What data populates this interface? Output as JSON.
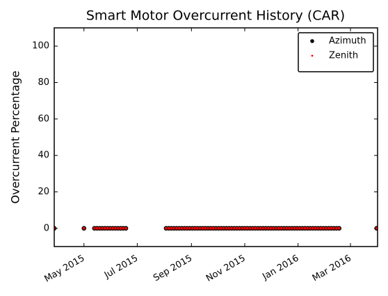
{
  "chart_data": {
    "type": "scatter",
    "title": "Smart Motor Overcurrent History (CAR)",
    "ylabel": "Overcurrent Percentage",
    "x": [
      "2015-03-28",
      "2015-05-01",
      "2015-05-13",
      "2015-05-16",
      "2015-05-19",
      "2015-05-22",
      "2015-05-25",
      "2015-05-28",
      "2015-05-31",
      "2015-06-03",
      "2015-06-06",
      "2015-06-09",
      "2015-06-12",
      "2015-06-15",
      "2015-06-18",
      "2015-08-03",
      "2015-08-06",
      "2015-08-09",
      "2015-08-12",
      "2015-08-15",
      "2015-08-18",
      "2015-08-21",
      "2015-08-24",
      "2015-08-27",
      "2015-08-30",
      "2015-09-02",
      "2015-09-05",
      "2015-09-08",
      "2015-09-11",
      "2015-09-14",
      "2015-09-17",
      "2015-09-20",
      "2015-09-23",
      "2015-09-26",
      "2015-09-29",
      "2015-10-02",
      "2015-10-05",
      "2015-10-08",
      "2015-10-11",
      "2015-10-14",
      "2015-10-17",
      "2015-10-20",
      "2015-10-23",
      "2015-10-26",
      "2015-10-29",
      "2015-11-01",
      "2015-11-04",
      "2015-11-07",
      "2015-11-10",
      "2015-11-13",
      "2015-11-16",
      "2015-11-19",
      "2015-11-22",
      "2015-11-25",
      "2015-11-28",
      "2015-12-01",
      "2015-12-04",
      "2015-12-07",
      "2015-12-10",
      "2015-12-13",
      "2015-12-16",
      "2015-12-19",
      "2015-12-22",
      "2015-12-25",
      "2015-12-28",
      "2015-12-31",
      "2016-01-03",
      "2016-01-06",
      "2016-01-09",
      "2016-01-12",
      "2016-01-15",
      "2016-01-18",
      "2016-01-21",
      "2016-01-24",
      "2016-01-27",
      "2016-01-30",
      "2016-02-02",
      "2016-02-05",
      "2016-02-08",
      "2016-02-11",
      "2016-02-14",
      "2016-02-17",
      "2016-03-31"
    ],
    "series": [
      {
        "name": "Azimuth",
        "color": "#000000",
        "values": [
          0,
          0,
          0,
          0,
          0,
          0,
          0,
          0,
          0,
          0,
          0,
          0,
          0,
          0,
          0,
          0,
          0,
          0,
          0,
          0,
          0,
          0,
          0,
          0,
          0,
          0,
          0,
          0,
          0,
          0,
          0,
          0,
          0,
          0,
          0,
          0,
          0,
          0,
          0,
          0,
          0,
          0,
          0,
          0,
          0,
          0,
          0,
          0,
          0,
          0,
          0,
          0,
          0,
          0,
          0,
          0,
          0,
          0,
          0,
          0,
          0,
          0,
          0,
          0,
          0,
          0,
          0,
          0,
          0,
          0,
          0,
          0,
          0,
          0,
          0,
          0,
          0,
          0,
          0,
          0,
          0,
          0,
          0
        ]
      },
      {
        "name": "Zenith",
        "color": "#ff0000",
        "values": [
          0,
          0,
          0,
          0,
          0,
          0,
          0,
          0,
          0,
          0,
          0,
          0,
          0,
          0,
          0,
          0,
          0,
          0,
          0,
          0,
          0,
          0,
          0,
          0,
          0,
          0,
          0,
          0,
          0,
          0,
          0,
          0,
          0,
          0,
          0,
          0,
          0,
          0,
          0,
          0,
          0,
          0,
          0,
          0,
          0,
          0,
          0,
          0,
          0,
          0,
          0,
          0,
          0,
          0,
          0,
          0,
          0,
          0,
          0,
          0,
          0,
          0,
          0,
          0,
          0,
          0,
          0,
          0,
          0,
          0,
          0,
          0,
          0,
          0,
          0,
          0,
          0,
          0,
          0,
          0,
          0,
          0,
          0
        ]
      }
    ],
    "xlim": [
      "2015-03-28",
      "2016-04-01"
    ],
    "xticks": [
      {
        "value": "2015-05-01",
        "label": "May 2015"
      },
      {
        "value": "2015-07-01",
        "label": "Jul 2015"
      },
      {
        "value": "2015-09-01",
        "label": "Sep 2015"
      },
      {
        "value": "2015-11-01",
        "label": "Nov 2015"
      },
      {
        "value": "2016-01-01",
        "label": "Jan 2016"
      },
      {
        "value": "2016-03-01",
        "label": "Mar 2016"
      }
    ],
    "ylim": [
      -10,
      110
    ],
    "yticks": [
      0,
      20,
      40,
      60,
      80,
      100
    ],
    "legend": "upper right"
  }
}
